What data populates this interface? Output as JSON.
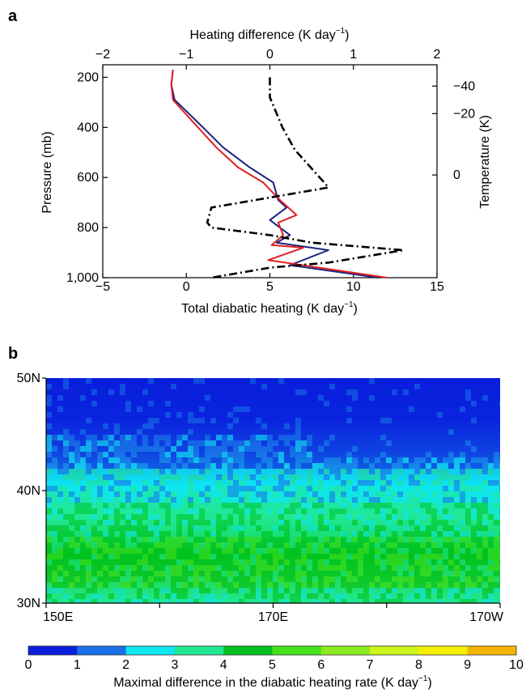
{
  "chart_data": [
    {
      "panel": "a",
      "type": "line",
      "x_bottom": {
        "label": "Total diabatic heating (K day",
        "label_sup": "−1",
        "label_end": ")",
        "ticks": [
          "−5",
          "0",
          "5",
          "10",
          "15"
        ],
        "range": [
          -5,
          15
        ]
      },
      "x_top": {
        "label": "Heating difference (K day",
        "label_sup": "−1",
        "label_end": ")",
        "ticks": [
          "−2",
          "−1",
          "0",
          "1",
          "2"
        ],
        "range": [
          -2,
          2
        ]
      },
      "y_left": {
        "label": "Pressure (mb)",
        "ticks": [
          "200",
          "400",
          "600",
          "800",
          "1,000"
        ],
        "range": [
          1000,
          150
        ]
      },
      "y_right": {
        "label": "Temperature (K)",
        "ticks": [
          "−40",
          "−20",
          "0"
        ]
      },
      "series": [
        {
          "style": "blue-solid",
          "color": "#1a237e",
          "axis": "bottom",
          "points": [
            [
              -0.8,
              170
            ],
            [
              -0.9,
              230
            ],
            [
              -0.7,
              290
            ],
            [
              1.0,
              400
            ],
            [
              2.2,
              480
            ],
            [
              3.8,
              560
            ],
            [
              5.2,
              620
            ],
            [
              5.5,
              690
            ],
            [
              6.0,
              720
            ],
            [
              5.0,
              770
            ],
            [
              6.2,
              830
            ],
            [
              5.4,
              860
            ],
            [
              8.5,
              890
            ],
            [
              6.2,
              950
            ],
            [
              11.5,
              1000
            ]
          ]
        },
        {
          "style": "red-solid",
          "color": "#e02020",
          "axis": "bottom",
          "points": [
            [
              -0.8,
              170
            ],
            [
              -0.9,
              230
            ],
            [
              -0.8,
              290
            ],
            [
              0.7,
              400
            ],
            [
              1.8,
              480
            ],
            [
              3.1,
              560
            ],
            [
              4.6,
              620
            ],
            [
              5.6,
              690
            ],
            [
              6.6,
              750
            ],
            [
              5.5,
              780
            ],
            [
              5.8,
              830
            ],
            [
              5.1,
              870
            ],
            [
              7.0,
              880
            ],
            [
              4.9,
              930
            ],
            [
              12.0,
              1000
            ]
          ]
        },
        {
          "style": "black-dashdot",
          "color": "#000000",
          "axis": "top",
          "points": [
            [
              0.0,
              200
            ],
            [
              0.0,
              280
            ],
            [
              0.15,
              400
            ],
            [
              0.3,
              490
            ],
            [
              0.65,
              620
            ],
            [
              0.7,
              640
            ],
            [
              -0.7,
              720
            ],
            [
              -0.75,
              780
            ],
            [
              -0.7,
              800
            ],
            [
              0.0,
              830
            ],
            [
              0.5,
              860
            ],
            [
              1.6,
              890
            ],
            [
              0.7,
              940
            ],
            [
              0.0,
              960
            ],
            [
              -0.7,
              1000
            ]
          ]
        }
      ]
    },
    {
      "panel": "b",
      "type": "heatmap",
      "y_ticks": [
        "50N",
        "40N",
        "30N"
      ],
      "y_range": [
        30,
        50
      ],
      "x_ticks": [
        "150E",
        "170E",
        "170W"
      ],
      "colorbar": {
        "ticks": [
          "0",
          "1",
          "2",
          "3",
          "4",
          "5",
          "6",
          "7",
          "8",
          "9",
          "10"
        ],
        "colors": [
          "#0a1fdc",
          "#1870e8",
          "#0ee6f0",
          "#20e892",
          "#00c21f",
          "#45e21c",
          "#8cea20",
          "#cdf51a",
          "#f5f000",
          "#f5b400",
          "#ff7020"
        ],
        "label": "Maximal difference in the diabatic heating rate (K day",
        "label_sup": "−1",
        "label_end": ")"
      }
    }
  ]
}
